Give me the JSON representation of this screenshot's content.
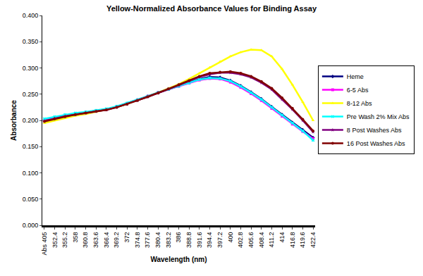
{
  "chart_data": {
    "type": "line",
    "title": "Yellow-Normalized Absorbance Values for Binding Assay",
    "x_label": "Wavelength (nm)",
    "y_label": "Absorbance",
    "categories": [
      "Abs 405",
      "352.4",
      "355.2",
      "358",
      "360.8",
      "363.6",
      "366.4",
      "369.2",
      "372",
      "374.8",
      "377.6",
      "380.4",
      "383.2",
      "386",
      "388.8",
      "391.6",
      "394.4",
      "397.2",
      "400",
      "402.8",
      "405.6",
      "408.4",
      "411.2",
      "414",
      "416.8",
      "419.6",
      "422.4"
    ],
    "series": [
      {
        "name": "Heme",
        "color": "#000080",
        "marker": "diamond",
        "values": [
          0.2,
          0.205,
          0.209,
          0.212,
          0.215,
          0.218,
          0.221,
          0.226,
          0.232,
          0.239,
          0.246,
          0.253,
          0.26,
          0.266,
          0.272,
          0.279,
          0.283,
          0.282,
          0.276,
          0.266,
          0.254,
          0.241,
          0.226,
          0.211,
          0.196,
          0.182,
          0.167
        ]
      },
      {
        "name": "6-5 Abs",
        "color": "#ff00ff",
        "marker": "square",
        "values": [
          0.2,
          0.205,
          0.209,
          0.212,
          0.215,
          0.218,
          0.221,
          0.226,
          0.232,
          0.239,
          0.246,
          0.253,
          0.259,
          0.265,
          0.271,
          0.277,
          0.28,
          0.279,
          0.273,
          0.263,
          0.251,
          0.238,
          0.223,
          0.208,
          0.193,
          0.179,
          0.165
        ]
      },
      {
        "name": "8-12 Abs",
        "color": "#ffff00",
        "marker": "triangle-up",
        "values": [
          0.195,
          0.2,
          0.205,
          0.209,
          0.212,
          0.216,
          0.22,
          0.225,
          0.231,
          0.238,
          0.245,
          0.253,
          0.261,
          0.269,
          0.279,
          0.29,
          0.301,
          0.312,
          0.322,
          0.33,
          0.335,
          0.334,
          0.322,
          0.298,
          0.268,
          0.235,
          0.2
        ]
      },
      {
        "name": "Pre Wash 2% Mix Abs",
        "color": "#00ffff",
        "marker": "x",
        "values": [
          0.203,
          0.207,
          0.211,
          0.214,
          0.216,
          0.219,
          0.222,
          0.227,
          0.233,
          0.239,
          0.246,
          0.253,
          0.259,
          0.265,
          0.271,
          0.278,
          0.281,
          0.28,
          0.275,
          0.265,
          0.253,
          0.24,
          0.225,
          0.21,
          0.195,
          0.18,
          0.162
        ]
      },
      {
        "name": "8 Post Washes Abs",
        "color": "#800080",
        "marker": "star",
        "values": [
          0.199,
          0.204,
          0.208,
          0.211,
          0.214,
          0.217,
          0.22,
          0.225,
          0.231,
          0.238,
          0.245,
          0.252,
          0.26,
          0.267,
          0.275,
          0.283,
          0.288,
          0.291,
          0.291,
          0.288,
          0.282,
          0.272,
          0.259,
          0.24,
          0.221,
          0.2,
          0.178
        ]
      },
      {
        "name": "16 Post Washes Abs",
        "color": "#800000",
        "marker": "circle",
        "values": [
          0.198,
          0.203,
          0.207,
          0.211,
          0.214,
          0.217,
          0.22,
          0.225,
          0.231,
          0.238,
          0.245,
          0.252,
          0.26,
          0.268,
          0.276,
          0.284,
          0.29,
          0.292,
          0.293,
          0.29,
          0.284,
          0.274,
          0.261,
          0.243,
          0.223,
          0.202,
          0.18
        ]
      }
    ],
    "ylim": [
      0,
      0.4
    ],
    "yticks": [
      {
        "value": 0,
        "label": "0.000"
      },
      {
        "value": 0.05,
        "label": "0.050"
      },
      {
        "value": 0.1,
        "label": "0.100"
      },
      {
        "value": 0.15,
        "label": "0.150"
      },
      {
        "value": 0.2,
        "label": "0.200"
      },
      {
        "value": 0.25,
        "label": "0.250"
      },
      {
        "value": 0.3,
        "label": "0.300"
      },
      {
        "value": 0.35,
        "label": "0.350"
      },
      {
        "value": 0.4,
        "label": "0.400"
      }
    ],
    "grid": false,
    "legend": "right"
  }
}
